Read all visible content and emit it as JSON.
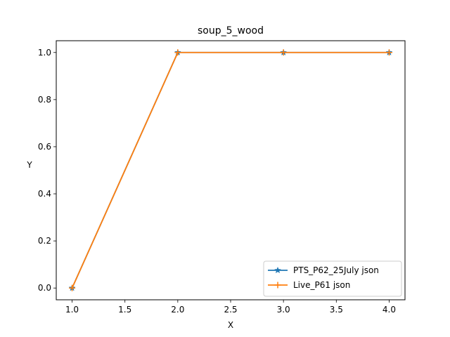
{
  "chart_data": {
    "type": "line",
    "title": "soup_5_wood",
    "xlabel": "X",
    "ylabel": "Y",
    "xlim": [
      0.85,
      4.15
    ],
    "ylim": [
      -0.05,
      1.05
    ],
    "xticks": [
      1.0,
      1.5,
      2.0,
      2.5,
      3.0,
      3.5,
      4.0
    ],
    "xtick_labels": [
      "1.0",
      "1.5",
      "2.0",
      "2.5",
      "3.0",
      "3.5",
      "4.0"
    ],
    "yticks": [
      0.0,
      0.2,
      0.4,
      0.6,
      0.8,
      1.0
    ],
    "ytick_labels": [
      "0.0",
      "0.2",
      "0.4",
      "0.6",
      "0.8",
      "1.0"
    ],
    "grid": false,
    "legend_position": "lower-right",
    "series": [
      {
        "name": "PTS_P62_25July json",
        "color": "#1f77b4",
        "marker": "star",
        "x": [
          1,
          2,
          3,
          4
        ],
        "y": [
          0,
          1,
          1,
          1
        ]
      },
      {
        "name": "Live_P61 json",
        "color": "#ff7f0e",
        "marker": "plus",
        "x": [
          1,
          2,
          3,
          4
        ],
        "y": [
          0,
          1,
          1,
          1
        ]
      }
    ]
  }
}
